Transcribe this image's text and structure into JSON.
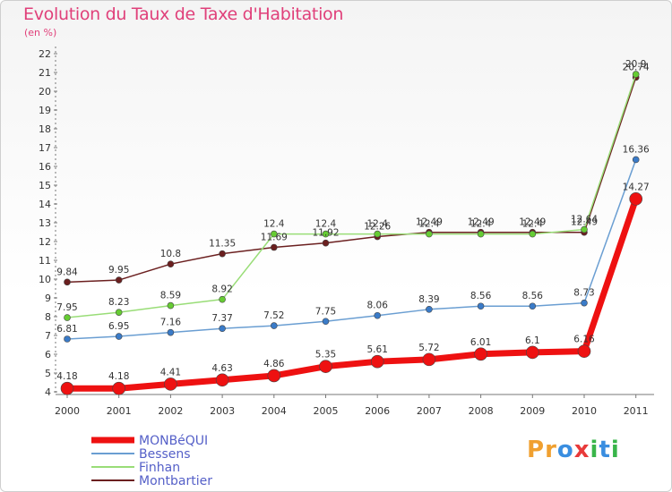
{
  "header": {
    "title": "Evolution du Taux de Taxe d'Habitation",
    "subtitle": "(en %)"
  },
  "logo": {
    "text": "Proxiti",
    "letters": [
      "P",
      "r",
      "o",
      "x",
      "i",
      "t",
      "i"
    ],
    "colors": [
      "#f0a030",
      "#f0a030",
      "#3a8ee0",
      "#e83a3a",
      "#39b54a",
      "#3a8ee0",
      "#39b54a"
    ]
  },
  "chart_data": {
    "type": "line",
    "title": "Evolution du Taux de Taxe d'Habitation",
    "ylabel": "(en %)",
    "xlabel": "",
    "x": [
      "2000",
      "2001",
      "2002",
      "2003",
      "2004",
      "2005",
      "2006",
      "2007",
      "2008",
      "2009",
      "2010",
      "2011"
    ],
    "ylim": [
      4,
      22
    ],
    "yticks": [
      4,
      5,
      6,
      7,
      8,
      9,
      10,
      11,
      12,
      13,
      14,
      15,
      16,
      17,
      18,
      19,
      20,
      21,
      22
    ],
    "grid": false,
    "legend": "bottom-left",
    "series": [
      {
        "name": "Montbartier",
        "color": "#6b1f1f",
        "marker": "#6b1f1f",
        "width": 1.5,
        "radius": 3.5,
        "values": [
          9.84,
          9.95,
          10.8,
          11.35,
          11.69,
          11.92,
          12.26,
          12.49,
          12.49,
          12.49,
          12.49,
          20.74
        ],
        "labels": [
          "9.84",
          "9.95",
          "10.8",
          "11.35",
          "11.69",
          "11.92",
          "12.26",
          "12.49",
          "12.49",
          "12.49",
          "12.49",
          "20.74"
        ]
      },
      {
        "name": "Finhan",
        "color": "#99dd77",
        "marker": "#66cc33",
        "width": 1.5,
        "radius": 3.5,
        "values": [
          7.95,
          8.23,
          8.59,
          8.92,
          12.4,
          12.4,
          12.4,
          12.4,
          12.4,
          12.4,
          12.64,
          20.9
        ],
        "labels": [
          "7.95",
          "8.23",
          "8.59",
          "8.92",
          "12.4",
          "12.4",
          "12.4",
          "12.4",
          "12.4",
          "12.4",
          "12.64",
          "20.9"
        ]
      },
      {
        "name": "Bessens",
        "color": "#6a9ed2",
        "marker": "#3a7bc8",
        "width": 1.5,
        "radius": 3.5,
        "values": [
          6.81,
          6.95,
          7.16,
          7.37,
          7.52,
          7.75,
          8.06,
          8.39,
          8.56,
          8.56,
          8.73,
          16.36
        ],
        "labels": [
          "6.81",
          "6.95",
          "7.16",
          "7.37",
          "7.52",
          "7.75",
          "8.06",
          "8.39",
          "8.56",
          "8.56",
          "8.73",
          "16.36"
        ]
      },
      {
        "name": "MONBéQUI",
        "color": "#ee1111",
        "marker": "#ee1111",
        "width": 7,
        "radius": 7,
        "values": [
          4.18,
          4.18,
          4.41,
          4.63,
          4.86,
          5.35,
          5.61,
          5.72,
          6.01,
          6.1,
          6.16,
          14.27
        ],
        "labels": [
          "4.18",
          "4.18",
          "4.41",
          "4.63",
          "4.86",
          "5.35",
          "5.61",
          "5.72",
          "6.01",
          "6.1",
          "6.16",
          "14.27"
        ]
      }
    ],
    "legend_order": [
      "MONBéQUI",
      "Bessens",
      "Finhan",
      "Montbartier"
    ]
  }
}
